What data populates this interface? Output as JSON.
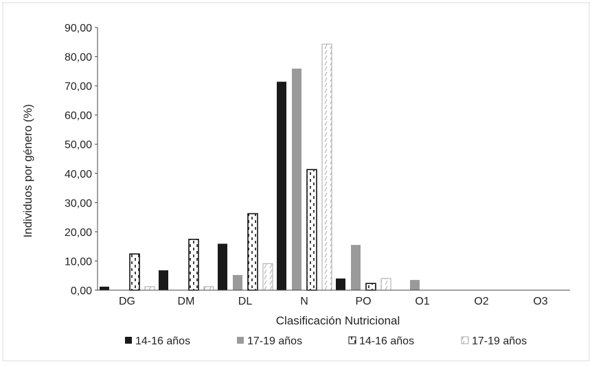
{
  "chart_data": {
    "type": "bar",
    "title": "",
    "xlabel": "Clasificación Nutricional",
    "ylabel": "Individuos  por género  (%)",
    "ylim": [
      0,
      90
    ],
    "y_ticks": [
      "0,00",
      "10,00",
      "20,00",
      "30,00",
      "40,00",
      "50,00",
      "60,00",
      "70,00",
      "80,00",
      "90,00"
    ],
    "categories": [
      "DG",
      "DM",
      "DL",
      "N",
      "PO",
      "O1",
      "O2",
      "O3"
    ],
    "series": [
      {
        "name": "14-16 años",
        "style": "solid-black",
        "color": "#1a1a1a",
        "values": [
          1.2,
          6.8,
          15.9,
          71.4,
          4.0,
          0,
          0,
          0
        ]
      },
      {
        "name": "17-19 años",
        "style": "solid-gray",
        "color": "#9a9a9a",
        "values": [
          0,
          0,
          5.2,
          75.9,
          15.5,
          3.5,
          0,
          0
        ]
      },
      {
        "name": "14-16 años",
        "style": "black-dashed-pattern",
        "color": "#1a1a1a",
        "values": [
          12.4,
          17.4,
          26.2,
          41.3,
          2.3,
          0,
          0,
          0
        ]
      },
      {
        "name": "17-19 años",
        "style": "gray-hatched-pattern",
        "color": "#9a9a9a",
        "values": [
          1.2,
          1.2,
          9.1,
          84.3,
          4.0,
          0,
          0,
          0
        ]
      }
    ],
    "grid": false,
    "legend_position": "bottom"
  }
}
